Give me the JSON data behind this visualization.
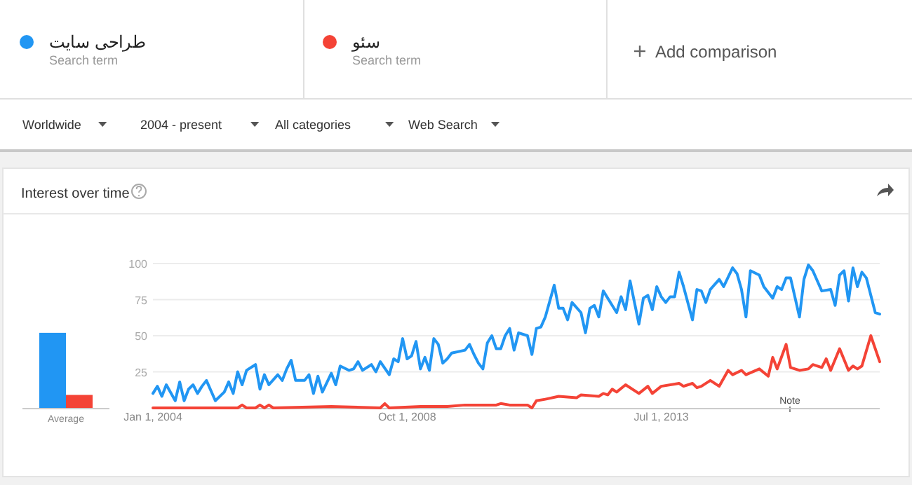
{
  "chart_data": [
    {
      "type": "bar",
      "title": "Interest over time",
      "categories": [
        "Average"
      ],
      "ylim": [
        0,
        100
      ],
      "tick_labels": "x",
      "series": [
        {
          "color": "#2196f3",
          "values": [
            52
          ]
        },
        {
          "color": "#f44336",
          "values": [
            9
          ]
        }
      ]
    },
    {
      "type": "line",
      "legend": "top",
      "grid": "y",
      "marker": "none",
      "line_style": "solid",
      "xlim": [
        "2004-01",
        "2017-08"
      ],
      "ylim": [
        0,
        100
      ],
      "yticks": [
        25,
        50,
        75,
        100
      ],
      "xticks": [
        {
          "value": "2004-01-01",
          "label": "Jan 1, 2004"
        },
        {
          "value": "2008-10-01",
          "label": "Oct 1, 2008"
        },
        {
          "value": "2013-07-01",
          "label": "Jul 1, 2013"
        }
      ],
      "annotations": [
        "Search term",
        "Search term",
        "Add comparison",
        "Worldwide",
        "2004 - present",
        "All categories",
        "Web Search",
        "Note"
      ],
      "series": [
        {
          "name": "طراحی سایت",
          "color": "#2196f3",
          "x": [
            "2004-01",
            "2004-02",
            "2004-03",
            "2004-04",
            "2004-06",
            "2004-07",
            "2004-08",
            "2004-09",
            "2004-10",
            "2004-11",
            "2004-12",
            "2005-01",
            "2005-03",
            "2005-05",
            "2005-06",
            "2005-07",
            "2005-08",
            "2005-09",
            "2005-10",
            "2005-12",
            "2006-01",
            "2006-02",
            "2006-03",
            "2006-05",
            "2006-06",
            "2006-07",
            "2006-08",
            "2006-09",
            "2006-11",
            "2006-12",
            "2007-01",
            "2007-02",
            "2007-03",
            "2007-05",
            "2007-06",
            "2007-07",
            "2007-09",
            "2007-10",
            "2007-11",
            "2007-12",
            "2008-02",
            "2008-03",
            "2008-04",
            "2008-06",
            "2008-07",
            "2008-08",
            "2008-09",
            "2008-10",
            "2008-11",
            "2008-12",
            "2009-01",
            "2009-02",
            "2009-03",
            "2009-04",
            "2009-05",
            "2009-06",
            "2009-07",
            "2009-08",
            "2009-11",
            "2009-12",
            "2010-01",
            "2010-02",
            "2010-03",
            "2010-04",
            "2010-05",
            "2010-06",
            "2010-07",
            "2010-08",
            "2010-09",
            "2010-10",
            "2010-11",
            "2011-01",
            "2011-02",
            "2011-03",
            "2011-04",
            "2011-05",
            "2011-07",
            "2011-08",
            "2011-09",
            "2011-10",
            "2011-11",
            "2012-01",
            "2012-02",
            "2012-03",
            "2012-04",
            "2012-05",
            "2012-06",
            "2012-08",
            "2012-09",
            "2012-10",
            "2012-11",
            "2012-12",
            "2013-01",
            "2013-02",
            "2013-03",
            "2013-04",
            "2013-05",
            "2013-06",
            "2013-07",
            "2013-08",
            "2013-09",
            "2013-10",
            "2013-11",
            "2013-12",
            "2014-02",
            "2014-03",
            "2014-04",
            "2014-05",
            "2014-06",
            "2014-08",
            "2014-09",
            "2014-11",
            "2014-12",
            "2015-01",
            "2015-02",
            "2015-03",
            "2015-05",
            "2015-06",
            "2015-08",
            "2015-09",
            "2015-10",
            "2015-11",
            "2015-12",
            "2016-02",
            "2016-03",
            "2016-04",
            "2016-05",
            "2016-06",
            "2016-07",
            "2016-09",
            "2016-10",
            "2016-11",
            "2016-12",
            "2017-01",
            "2017-02",
            "2017-03",
            "2017-04",
            "2017-05",
            "2017-07",
            "2017-08"
          ],
          "values": [
            10,
            15,
            8,
            16,
            5,
            18,
            5,
            13,
            16,
            10,
            15,
            19,
            5,
            11,
            18,
            10,
            25,
            16,
            26,
            30,
            13,
            23,
            16,
            23,
            19,
            27,
            33,
            19,
            19,
            23,
            10,
            22,
            11,
            24,
            16,
            29,
            26,
            27,
            32,
            26,
            30,
            25,
            32,
            23,
            34,
            32,
            48,
            34,
            36,
            46,
            27,
            35,
            26,
            48,
            44,
            31,
            34,
            38,
            40,
            44,
            37,
            31,
            27,
            45,
            50,
            41,
            41,
            50,
            55,
            40,
            52,
            50,
            37,
            55,
            56,
            63,
            85,
            69,
            69,
            61,
            73,
            66,
            52,
            69,
            71,
            63,
            81,
            71,
            66,
            77,
            68,
            88,
            73,
            58,
            76,
            78,
            68,
            84,
            77,
            73,
            77,
            77,
            94,
            84,
            61,
            82,
            81,
            73,
            82,
            89,
            84,
            97,
            93,
            82,
            63,
            95,
            92,
            84,
            76,
            84,
            82,
            90,
            90,
            63,
            89,
            99,
            95,
            88,
            81,
            82,
            71,
            92,
            95,
            74,
            97,
            84,
            94,
            90,
            66,
            65
          ]
        },
        {
          "name": "سئو",
          "color": "#f44336",
          "x": [
            "2004-01",
            "2005-08",
            "2005-09",
            "2005-10",
            "2005-12",
            "2006-01",
            "2006-02",
            "2006-03",
            "2006-04",
            "2007-05",
            "2008-04",
            "2008-05",
            "2008-06",
            "2009-01",
            "2009-07",
            "2009-11",
            "2010-06",
            "2010-07",
            "2010-09",
            "2011-01",
            "2011-02",
            "2011-03",
            "2011-05",
            "2011-08",
            "2011-12",
            "2012-01",
            "2012-05",
            "2012-06",
            "2012-07",
            "2012-08",
            "2012-09",
            "2012-11",
            "2013-02",
            "2013-04",
            "2013-05",
            "2013-07",
            "2013-11",
            "2013-12",
            "2014-02",
            "2014-03",
            "2014-04",
            "2014-06",
            "2014-08",
            "2014-10",
            "2014-11",
            "2015-01",
            "2015-02",
            "2015-05",
            "2015-07",
            "2015-08",
            "2015-09",
            "2015-11",
            "2015-12",
            "2016-02",
            "2016-04",
            "2016-05",
            "2016-07",
            "2016-08",
            "2016-09",
            "2016-11",
            "2017-01",
            "2017-02",
            "2017-03",
            "2017-04",
            "2017-06",
            "2017-08"
          ],
          "values": [
            0,
            0,
            2,
            0,
            0,
            2,
            0,
            2,
            0,
            1,
            0,
            3,
            0,
            1,
            1,
            2,
            2,
            3,
            2,
            2,
            0,
            5,
            6,
            8,
            7,
            9,
            8,
            10,
            9,
            13,
            11,
            16,
            10,
            15,
            10,
            15,
            17,
            15,
            17,
            14,
            15,
            19,
            15,
            26,
            23,
            26,
            23,
            27,
            22,
            35,
            27,
            44,
            28,
            26,
            27,
            30,
            28,
            34,
            26,
            41,
            26,
            29,
            27,
            29,
            50,
            32
          ]
        }
      ]
    }
  ]
}
